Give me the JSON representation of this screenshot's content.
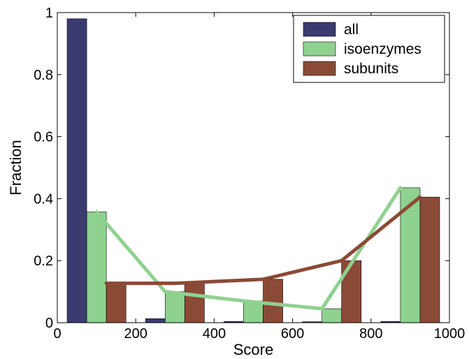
{
  "chart_data": {
    "type": "bar",
    "title": "",
    "xlabel": "Score",
    "ylabel": "Fraction",
    "xlim": [
      0,
      1000
    ],
    "ylim": [
      0,
      1
    ],
    "xticks": [
      "0",
      "200",
      "400",
      "600",
      "800",
      "1000"
    ],
    "yticks": [
      "0",
      "0.2",
      "0.4",
      "0.6",
      "0.8",
      "1"
    ],
    "grid": false,
    "legend_position": "top-right",
    "bin_centers": [
      100,
      300,
      500,
      700,
      900
    ],
    "series": [
      {
        "name": "all",
        "color": "#3b3b70",
        "values": [
          0.98,
          0.013,
          0.004,
          0.003,
          0.004
        ]
      },
      {
        "name": "isoenzymes",
        "color": "#8fd18f",
        "values": [
          0.357,
          0.1,
          0.07,
          0.045,
          0.435
        ]
      },
      {
        "name": "subunits",
        "color": "#8b4a35",
        "values": [
          0.127,
          0.127,
          0.14,
          0.2,
          0.405
        ]
      }
    ],
    "trend_lines": [
      {
        "series": "isoenzymes",
        "color": "#8fd18f",
        "x": [
          100,
          275,
          475,
          675,
          875
        ],
        "y": [
          0.357,
          0.1,
          0.07,
          0.045,
          0.435
        ]
      },
      {
        "series": "subunits",
        "color": "#8b4a35",
        "x": [
          125,
          300,
          525,
          725,
          925
        ],
        "y": [
          0.127,
          0.127,
          0.14,
          0.2,
          0.405
        ]
      }
    ]
  }
}
